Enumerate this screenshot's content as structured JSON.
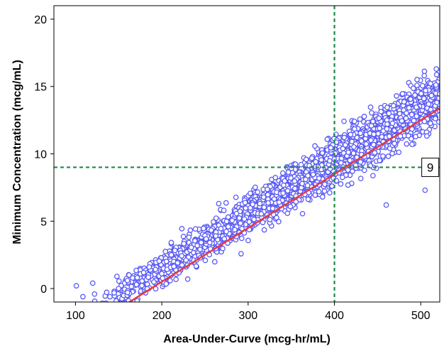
{
  "chart_data": {
    "type": "scatter",
    "xlabel": "Area-Under-Curve (mcg-hr/mL)",
    "ylabel": "Minimum Concentration (mcg/mL)",
    "xlim": [
      75,
      522
    ],
    "ylim": [
      -1,
      21
    ],
    "xticks": [
      100,
      200,
      300,
      400,
      500
    ],
    "yticks": [
      0,
      5,
      10,
      15,
      20
    ],
    "grid": false,
    "legend": "none",
    "marker": "open-circle",
    "point_color": "#5b5bf5",
    "point_cloud": {
      "x_range": [
        101,
        522
      ],
      "regression": {
        "slope": 0.04,
        "intercept": -7.5
      },
      "spread_sd": 0.75,
      "highlighted_points": [
        {
          "x": 101,
          "y": 0.2
        },
        {
          "x": 120,
          "y": 0.4
        },
        {
          "x": 148,
          "y": 0.9
        },
        {
          "x": 230,
          "y": 0.7
        },
        {
          "x": 460,
          "y": 6.2
        },
        {
          "x": 505,
          "y": 7.3
        },
        {
          "x": 518,
          "y": 16.3
        }
      ]
    },
    "regression_line": {
      "slope": 0.04,
      "intercept": -7.5,
      "color": "#e8383d"
    },
    "reference_lines": [
      {
        "axis": "x",
        "value": 400,
        "color": "#1f8a4c",
        "style": "dashed"
      },
      {
        "axis": "y",
        "value": 9,
        "color": "#1f8a4c",
        "style": "dashed"
      }
    ],
    "annotations": [
      {
        "text": "9",
        "x": 511,
        "y": 9
      }
    ]
  }
}
